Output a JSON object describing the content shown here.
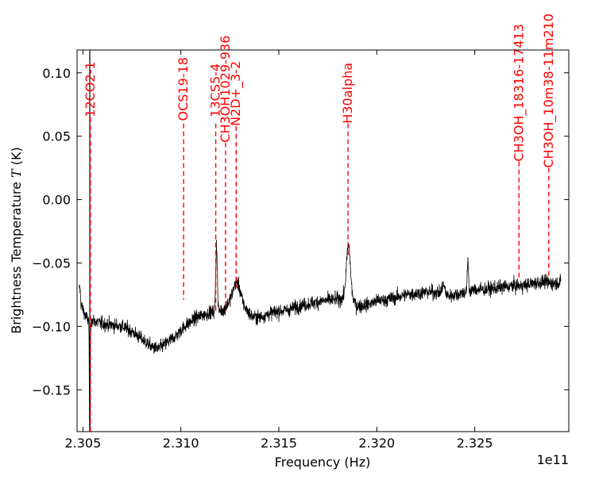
{
  "chart_data": {
    "type": "line",
    "title": "",
    "xlabel": "Frequency (Hz)",
    "ylabel_prefix": "Brightness Temperature ",
    "ylabel_symbol": "T",
    "ylabel_suffix": " (K)",
    "x_offset_label": "1e11",
    "xlim": [
      2.3047,
      2.3298
    ],
    "ylim": [
      -0.183,
      0.118
    ],
    "x_scale": 100000000000.0,
    "grid": false,
    "xticks": [
      {
        "value": 2.305,
        "label": "2.305"
      },
      {
        "value": 2.31,
        "label": "2.310"
      },
      {
        "value": 2.315,
        "label": "2.315"
      },
      {
        "value": 2.32,
        "label": "2.320"
      },
      {
        "value": 2.325,
        "label": "2.325"
      }
    ],
    "yticks": [
      {
        "value": 0.1,
        "label": "0.10"
      },
      {
        "value": 0.05,
        "label": "0.05"
      },
      {
        "value": 0.0,
        "label": "0.00"
      },
      {
        "value": -0.05,
        "label": "−0.05"
      },
      {
        "value": -0.1,
        "label": "−0.10"
      },
      {
        "value": -0.15,
        "label": "−0.15"
      }
    ],
    "line_color": "#000000",
    "annotation_color": "#ff0000",
    "baseline": [
      [
        2.3048,
        -0.08
      ],
      [
        2.3052,
        -0.094
      ],
      [
        2.306,
        -0.098
      ],
      [
        2.3065,
        -0.099
      ],
      [
        2.307,
        -0.1
      ],
      [
        2.3075,
        -0.104
      ],
      [
        2.308,
        -0.11
      ],
      [
        2.3085,
        -0.116
      ],
      [
        2.3088,
        -0.118
      ],
      [
        2.3092,
        -0.114
      ],
      [
        2.3097,
        -0.108
      ],
      [
        2.3102,
        -0.1
      ],
      [
        2.3108,
        -0.093
      ],
      [
        2.3115,
        -0.089
      ],
      [
        2.3122,
        -0.087
      ],
      [
        2.3127,
        -0.074
      ],
      [
        2.3131,
        -0.082
      ],
      [
        2.3136,
        -0.092
      ],
      [
        2.314,
        -0.093
      ],
      [
        2.3145,
        -0.09
      ],
      [
        2.315,
        -0.088
      ],
      [
        2.3155,
        -0.087
      ],
      [
        2.316,
        -0.084
      ],
      [
        2.3166,
        -0.082
      ],
      [
        2.3172,
        -0.08
      ],
      [
        2.3178,
        -0.079
      ],
      [
        2.3182,
        -0.078
      ],
      [
        2.3186,
        -0.076
      ],
      [
        2.319,
        -0.084
      ],
      [
        2.3195,
        -0.083
      ],
      [
        2.32,
        -0.08
      ],
      [
        2.3205,
        -0.079
      ],
      [
        2.321,
        -0.077
      ],
      [
        2.3215,
        -0.075
      ],
      [
        2.322,
        -0.074
      ],
      [
        2.3225,
        -0.073
      ],
      [
        2.323,
        -0.073
      ],
      [
        2.3235,
        -0.076
      ],
      [
        2.324,
        -0.075
      ],
      [
        2.3245,
        -0.073
      ],
      [
        2.325,
        -0.071
      ],
      [
        2.3255,
        -0.071
      ],
      [
        2.326,
        -0.07
      ],
      [
        2.3265,
        -0.069
      ],
      [
        2.327,
        -0.068
      ],
      [
        2.3275,
        -0.068
      ],
      [
        2.328,
        -0.066
      ],
      [
        2.3285,
        -0.065
      ],
      [
        2.329,
        -0.066
      ],
      [
        2.3294,
        -0.065
      ]
    ],
    "noise": 0.0045,
    "features": [
      {
        "center": 2.30483,
        "height": 0.012,
        "width": 4e-05
      },
      {
        "center": 2.30535,
        "height": -0.11,
        "width": 2e-05
      },
      {
        "center": 2.31182,
        "height": 0.052,
        "width": 4e-05
      },
      {
        "center": 2.3129,
        "height": 0.012,
        "width": 0.00015
      },
      {
        "center": 2.31855,
        "height": 0.04,
        "width": 0.0001
      },
      {
        "center": 2.32465,
        "height": 0.025,
        "width": 3e-05
      },
      {
        "center": 2.3234,
        "height": 0.008,
        "width": 8e-05
      }
    ],
    "spikes": [
      {
        "x": 2.30535,
        "top": 0.118,
        "bottom": -0.183
      }
    ],
    "line_annotations": [
      {
        "label": "12CO2-1",
        "freq": 2.30538,
        "text_y": 0.065,
        "line_top": 0.065,
        "line_bottom": -0.183
      },
      {
        "label": "OCS19-18",
        "freq": 2.31014,
        "text_y": 0.062,
        "line_top": 0.06,
        "line_bottom": -0.079
      },
      {
        "label": "13CS5-4",
        "freq": 2.31178,
        "text_y": 0.065,
        "line_top": 0.06,
        "line_bottom": -0.088
      },
      {
        "label": "CH3OH1029-936",
        "freq": 2.31228,
        "text_y": 0.045,
        "line_top": 0.045,
        "line_bottom": -0.088
      },
      {
        "label": "N2D+_3-2",
        "freq": 2.31282,
        "text_y": 0.058,
        "line_top": 0.058,
        "line_bottom": -0.07
      },
      {
        "label": "H30alpha",
        "freq": 2.31853,
        "text_y": 0.06,
        "line_top": 0.06,
        "line_bottom": -0.045
      },
      {
        "label": "CH3OH_18316-17413",
        "freq": 2.32726,
        "text_y": 0.03,
        "line_top": 0.03,
        "line_bottom": -0.063
      },
      {
        "label": "CH3OH_10m38-11m210",
        "freq": 2.32878,
        "text_y": 0.025,
        "line_top": 0.025,
        "line_bottom": -0.06
      }
    ]
  }
}
